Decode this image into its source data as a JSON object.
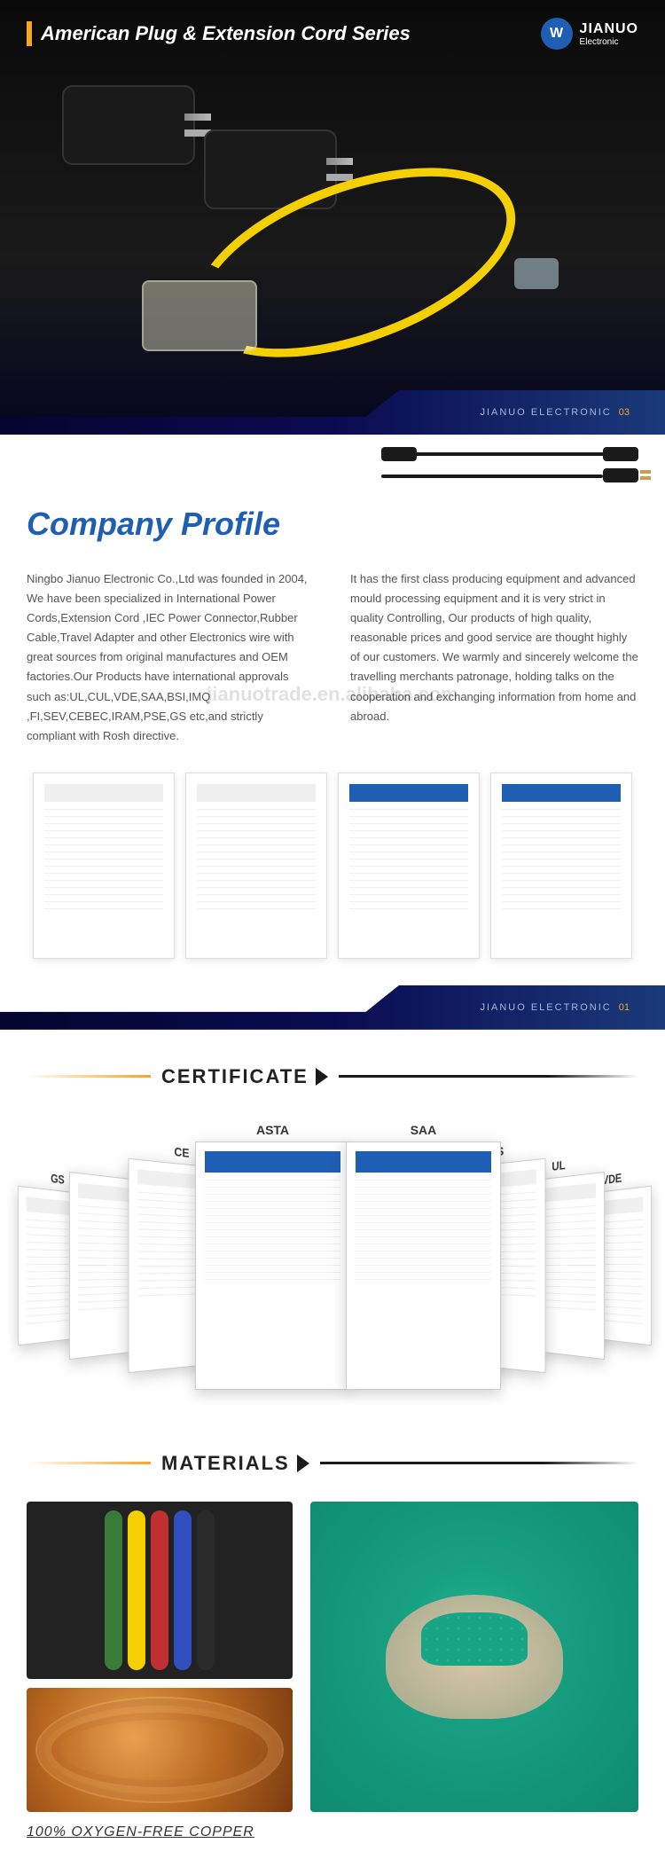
{
  "hero": {
    "title": "American Plug & Extension Cord Series",
    "logo_main": "JIANUO",
    "logo_sub": "Electronic",
    "footer_text": "JIANUO ELECTRONIC",
    "footer_num": "03",
    "accent_color": "#f5a623",
    "cord_color": "#f5d000"
  },
  "company": {
    "title": "Company Profile",
    "col1": "Ningbo Jianuo Electronic Co.,Ltd was founded in 2004, We have been specialized in International Power Cords,Extension Cord ,IEC Power Connector,Rubber Cable,Travel Adapter and other Electronics wire with great sources from original manufactures and OEM factories.Our Products have international approvals such as:UL,CUL,VDE,SAA,BSI,IMQ ,FI,SEV,CEBEC,IRAM,PSE,GS etc,and strictly compliant with Rosh directive.",
    "col2": "It has the first class producing equipment and advanced mould processing equipment and it is very strict in quality Controlling, Our products of high quality, reasonable prices and good service are thought highly of our customers.\nWe warmly and sincerely welcome the travelling merchants patronage, holding talks on the cooperation and exchanging information from home and abroad.",
    "watermark": "jianuotrade.en.alibaba.com",
    "footer_text": "JIANUO ELECTRONIC",
    "footer_num": "01",
    "title_color": "#1e5fb3"
  },
  "certificate": {
    "heading": "CERTIFICATE",
    "labels": [
      "GS",
      "CE",
      "ASTA",
      "SAA",
      "SGS",
      "UL",
      "VDE"
    ]
  },
  "materials": {
    "heading": "MATERIALS",
    "caption": "100% OXYGEN-FREE COPPER",
    "wire_colors": [
      "#3a7a3a",
      "#f5d000",
      "#c03030",
      "#3050c0",
      "#2a2a2a"
    ],
    "pellet_color": "#1fb893"
  }
}
